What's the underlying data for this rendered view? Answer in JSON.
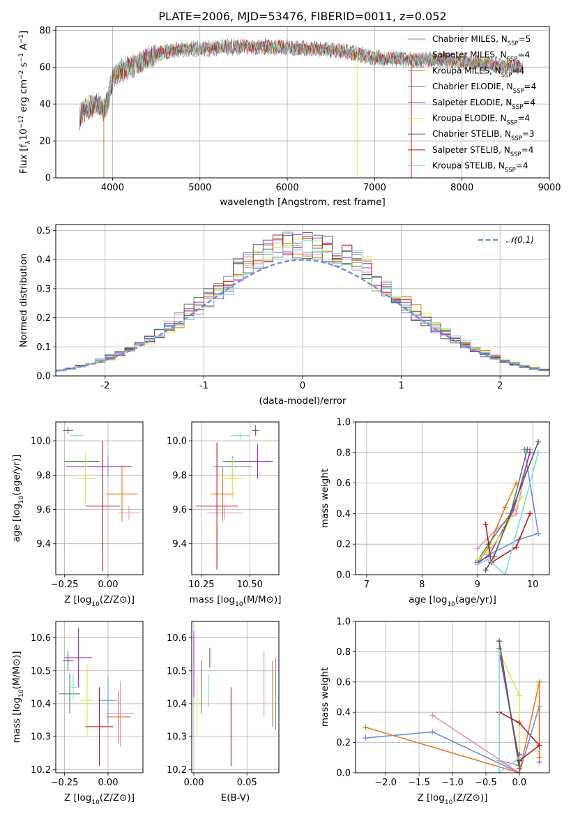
{
  "title": "PLATE=2006, MJD=53476, FIBERID=0011, z=0.052",
  "models": [
    {
      "name": "Chabrier MILES, N_SSP=5",
      "label": "Chabrier MILES, N",
      "sub": "SSP",
      "suffix": "=5",
      "color": "#6a8fdc"
    },
    {
      "name": "Salpeter MILES, N_SSP=4",
      "label": "Salpeter MILES, N",
      "sub": "SSP",
      "suffix": "=4",
      "color": "#e68cc0"
    },
    {
      "name": "Kroupa MILES, N_SSP=4",
      "label": "Kroupa MILES, N",
      "sub": "SSP",
      "suffix": "=4",
      "color": "#e07b20"
    },
    {
      "name": "Chabrier ELODIE, N_SSP=4",
      "label": "Chabrier ELODIE, N",
      "sub": "SSP",
      "suffix": "=4",
      "color": "#4e8a4e"
    },
    {
      "name": "Salpeter ELODIE, N_SSP=4",
      "label": "Salpeter ELODIE, N",
      "sub": "SSP",
      "suffix": "=4",
      "color": "#a532c8"
    },
    {
      "name": "Kroupa ELODIE, N_SSP=4",
      "label": "Kroupa ELODIE, N",
      "sub": "SSP",
      "suffix": "=4",
      "color": "#d4ec4c"
    },
    {
      "name": "Chabrier STELIB, N_SSP=3",
      "label": "Chabrier STELIB, N",
      "sub": "SSP",
      "suffix": "=3",
      "color": "#595959"
    },
    {
      "name": "Salpeter STELIB, N_SSP=4",
      "label": "Salpeter STELIB, N",
      "sub": "SSP",
      "suffix": "=4",
      "color": "#b51c1c"
    },
    {
      "name": "Kroupa STELIB, N_SSP=4",
      "label": "Kroupa STELIB, N",
      "sub": "SSP",
      "suffix": "=4",
      "color": "#7adbe0"
    }
  ],
  "chart_data": [
    {
      "type": "line",
      "panel": "spectrum",
      "title": "PLATE=2006, MJD=53476, FIBERID=0011, z=0.052",
      "xlabel": "wavelength [Angstrom, rest frame]",
      "ylabel": "Flux [f_λ 10^-17 erg cm^-2 s^-1 A^-1]",
      "xlim": [
        3350,
        9000
      ],
      "ylim": [
        0,
        82
      ],
      "xticks": [
        4000,
        5000,
        6000,
        7000,
        8000,
        9000
      ],
      "yticks": [
        0,
        20,
        40,
        60,
        80
      ],
      "legend": "top-right",
      "continuum": {
        "x": [
          3620,
          3700,
          3850,
          3900,
          3950,
          4000,
          4100,
          4300,
          4500,
          4800,
          5100,
          5400,
          5800,
          6200,
          6600,
          7000,
          7400,
          7800,
          8200,
          8700
        ],
        "y": [
          33,
          38,
          40,
          36,
          42,
          54,
          58,
          62,
          67,
          70,
          70,
          71,
          71,
          70,
          69,
          65,
          64,
          64,
          62,
          60
        ]
      },
      "artifacts": [
        {
          "series": "Kroupa MILES, N_SSP=4",
          "x": 3900,
          "y": 0
        },
        {
          "series": "Kroupa ELODIE, N_SSP=4",
          "x": 6800,
          "y": 0
        },
        {
          "series": "Salpeter STELIB, N_SSP=4",
          "x": 7420,
          "y": 0
        }
      ]
    },
    {
      "type": "histogram",
      "panel": "residuals",
      "xlabel": "(data-model)/error",
      "ylabel": "Normed distribution",
      "xlim": [
        -2.5,
        2.5
      ],
      "ylim": [
        0,
        0.52
      ],
      "xticks": [
        -2,
        -1,
        0,
        1,
        2
      ],
      "yticks": [
        0.0,
        0.1,
        0.2,
        0.3,
        0.4,
        0.5
      ],
      "reference": {
        "name": "𝒩(0,1)",
        "mean": 0,
        "sigma": 1,
        "style": "dashed"
      },
      "legend": "top-right",
      "bin_width": 0.1
    },
    {
      "type": "scatter",
      "panel": "age-vs-Z",
      "xlabel": "Z [log10(Z/Z⊙)]",
      "ylabel": "age [log10(age/yr)]",
      "xlim": [
        -0.3,
        0.2
      ],
      "ylim": [
        9.22,
        10.11
      ],
      "xticks": [
        -0.25,
        0.0
      ],
      "yticks": [
        9.4,
        9.6,
        9.8,
        10.0
      ],
      "points": [
        {
          "series": "Chabrier MILES, N_SSP=5",
          "x": 0.0,
          "y": 9.85,
          "xerr": 0.09,
          "yerr": 0.06
        },
        {
          "series": "Salpeter MILES, N_SSP=4",
          "x": 0.12,
          "y": 9.58,
          "xerr": 0.06,
          "yerr": 0.04
        },
        {
          "series": "Kroupa MILES, N_SSP=4",
          "x": 0.08,
          "y": 9.69,
          "xerr": 0.09,
          "yerr": 0.16
        },
        {
          "series": "Chabrier ELODIE, N_SSP=4",
          "x": -0.15,
          "y": 9.88,
          "xerr": 0.1,
          "yerr": 0.0
        },
        {
          "series": "Salpeter ELODIE, N_SSP=4",
          "x": -0.05,
          "y": 9.85,
          "xerr": 0.19,
          "yerr": 0.0
        },
        {
          "series": "Kroupa ELODIE, N_SSP=4",
          "x": -0.13,
          "y": 9.78,
          "xerr": 0.06,
          "yerr": 0.15
        },
        {
          "series": "Chabrier STELIB, N_SSP=3",
          "x": -0.23,
          "y": 10.06,
          "xerr": 0.03,
          "yerr": 0.02
        },
        {
          "series": "Salpeter STELIB, N_SSP=4",
          "x": -0.03,
          "y": 9.62,
          "xerr": 0.1,
          "yerr": 0.38
        },
        {
          "series": "Kroupa STELIB, N_SSP=4",
          "x": -0.18,
          "y": 10.03,
          "xerr": 0.04,
          "yerr": 0.01
        }
      ]
    },
    {
      "type": "scatter",
      "panel": "age-vs-mass",
      "xlabel": "mass [log10(M/M⊙)]",
      "ylabel": "",
      "xlim": [
        10.2,
        10.65
      ],
      "ylim": [
        9.22,
        10.11
      ],
      "xticks": [
        10.25,
        10.5
      ],
      "yticks": [
        9.4,
        9.6,
        9.8,
        10.0
      ],
      "points": [
        {
          "series": "Chabrier MILES, N_SSP=5",
          "x": 10.41,
          "y": 9.85,
          "xerr": 0.1,
          "yerr": 0.06
        },
        {
          "series": "Salpeter MILES, N_SSP=4",
          "x": 10.37,
          "y": 9.58,
          "xerr": 0.09,
          "yerr": 0.04
        },
        {
          "series": "Kroupa MILES, N_SSP=4",
          "x": 10.36,
          "y": 9.69,
          "xerr": 0.06,
          "yerr": 0.16
        },
        {
          "series": "Chabrier ELODIE, N_SSP=4",
          "x": 10.43,
          "y": 9.88,
          "xerr": 0.07,
          "yerr": 0.0
        },
        {
          "series": "Salpeter ELODIE, N_SSP=4",
          "x": 10.54,
          "y": 9.88,
          "xerr": 0.08,
          "yerr": 0.1
        },
        {
          "series": "Kroupa ELODIE, N_SSP=4",
          "x": 10.41,
          "y": 9.78,
          "xerr": 0.06,
          "yerr": 0.12
        },
        {
          "series": "Chabrier STELIB, N_SSP=3",
          "x": 10.53,
          "y": 10.06,
          "xerr": 0.02,
          "yerr": 0.03
        },
        {
          "series": "Salpeter STELIB, N_SSP=4",
          "x": 10.33,
          "y": 9.62,
          "xerr": 0.11,
          "yerr": 0.37
        },
        {
          "series": "Kroupa STELIB, N_SSP=4",
          "x": 10.45,
          "y": 10.03,
          "xerr": 0.05,
          "yerr": 0.02
        }
      ]
    },
    {
      "type": "line",
      "panel": "massweight-vs-age",
      "xlabel": "age [log10(age/yr)]",
      "ylabel": "mass weight",
      "xlim": [
        6.8,
        10.3
      ],
      "ylim": [
        0,
        1.0
      ],
      "xticks": [
        7,
        8,
        9,
        10
      ],
      "yticks": [
        0.0,
        0.2,
        0.4,
        0.6,
        0.8,
        1.0
      ],
      "series": [
        {
          "name": "Chabrier MILES, N_SSP=5",
          "x": [
            9.0,
            9.2,
            9.75,
            10.1,
            9.85
          ],
          "y": [
            0.07,
            0.13,
            0.23,
            0.27,
            0.82
          ]
        },
        {
          "name": "Salpeter MILES, N_SSP=4",
          "x": [
            9.0,
            9.35,
            9.7,
            9.95
          ],
          "y": [
            0.17,
            0.3,
            0.4,
            0.82
          ]
        },
        {
          "name": "Kroupa MILES, N_SSP=4",
          "x": [
            9.0,
            9.2,
            9.5,
            9.7
          ],
          "y": [
            0.07,
            0.18,
            0.44,
            0.6
          ]
        },
        {
          "name": "Chabrier ELODIE, N_SSP=4",
          "x": [
            9.0,
            9.2,
            9.6,
            9.9
          ],
          "y": [
            0.09,
            0.2,
            0.4,
            0.82
          ]
        },
        {
          "name": "Salpeter ELODIE, N_SSP=4",
          "x": [
            9.0,
            9.2,
            9.65,
            9.95
          ],
          "y": [
            0.08,
            0.12,
            0.42,
            0.8
          ]
        },
        {
          "name": "Kroupa ELODIE, N_SSP=4",
          "x": [
            9.0,
            9.2,
            9.5,
            9.8
          ],
          "y": [
            0.1,
            0.15,
            0.3,
            0.51
          ]
        },
        {
          "name": "Chabrier STELIB, N_SSP=3",
          "x": [
            9.15,
            9.3,
            10.1
          ],
          "y": [
            0.03,
            0.12,
            0.87
          ]
        },
        {
          "name": "Salpeter STELIB, N_SSP=4",
          "x": [
            9.15,
            9.25,
            9.7,
            9.95
          ],
          "y": [
            0.33,
            0.08,
            0.18,
            0.4
          ]
        },
        {
          "name": "Kroupa STELIB, N_SSP=4",
          "x": [
            9.0,
            9.2,
            9.5,
            10.1
          ],
          "y": [
            0.07,
            0.1,
            0.0,
            0.8
          ]
        }
      ]
    },
    {
      "type": "scatter",
      "panel": "mass-vs-Z",
      "xlabel": "Z [log10(Z/Z⊙)]",
      "ylabel": "mass [log10(M/M⊙)]",
      "xlim": [
        -0.3,
        0.2
      ],
      "ylim": [
        10.19,
        10.65
      ],
      "xticks": [
        -0.25,
        0.0
      ],
      "yticks": [
        10.2,
        10.3,
        10.4,
        10.5,
        10.6
      ],
      "points": [
        {
          "series": "Chabrier MILES, N_SSP=5",
          "x": 0.0,
          "y": 10.41,
          "xerr": 0.05,
          "yerr": 0.07
        },
        {
          "series": "Salpeter MILES, N_SSP=4",
          "x": 0.07,
          "y": 10.37,
          "xerr": 0.08,
          "yerr": 0.1
        },
        {
          "series": "Kroupa MILES, N_SSP=4",
          "x": 0.06,
          "y": 10.36,
          "xerr": 0.07,
          "yerr": 0.08
        },
        {
          "series": "Chabrier ELODIE, N_SSP=4",
          "x": -0.22,
          "y": 10.43,
          "xerr": 0.06,
          "yerr": 0.06
        },
        {
          "series": "Salpeter ELODIE, N_SSP=4",
          "x": -0.17,
          "y": 10.54,
          "xerr": 0.08,
          "yerr": 0.09
        },
        {
          "series": "Kroupa ELODIE, N_SSP=4",
          "x": -0.12,
          "y": 10.41,
          "xerr": 0.04,
          "yerr": 0.11
        },
        {
          "series": "Chabrier STELIB, N_SSP=3",
          "x": -0.23,
          "y": 10.53,
          "xerr": 0.03,
          "yerr": 0.03
        },
        {
          "series": "Salpeter STELIB, N_SSP=4",
          "x": -0.05,
          "y": 10.33,
          "xerr": 0.08,
          "yerr": 0.12
        },
        {
          "series": "Kroupa STELIB, N_SSP=4",
          "x": -0.2,
          "y": 10.45,
          "xerr": 0.02,
          "yerr": 0.04
        }
      ]
    },
    {
      "type": "scatter",
      "panel": "mass-vs-ebv",
      "xlabel": "E(B-V)",
      "ylabel": "",
      "xlim": [
        -0.002,
        0.08
      ],
      "ylim": [
        10.19,
        10.65
      ],
      "xticks": [
        0.0,
        0.05
      ],
      "yticks": [
        10.2,
        10.3,
        10.4,
        10.5,
        10.6
      ],
      "points": [
        {
          "series": "Chabrier MILES, N_SSP=5",
          "x": 0.077,
          "y": 10.43,
          "xerr": 0,
          "yerr": 0.11
        },
        {
          "series": "Salpeter MILES, N_SSP=4",
          "x": 0.066,
          "y": 10.46,
          "xerr": 0,
          "yerr": 0.1
        },
        {
          "series": "Kroupa MILES, N_SSP=4",
          "x": 0.074,
          "y": 10.43,
          "xerr": 0,
          "yerr": 0.1
        },
        {
          "series": "Chabrier ELODIE, N_SSP=4",
          "x": 0.007,
          "y": 10.45,
          "xerr": 0,
          "yerr": 0.08
        },
        {
          "series": "Salpeter ELODIE, N_SSP=4",
          "x": 0.0,
          "y": 10.52,
          "xerr": 0,
          "yerr": 0.1
        },
        {
          "series": "Kroupa ELODIE, N_SSP=4",
          "x": 0.003,
          "y": 10.39,
          "xerr": 0,
          "yerr": 0.09
        },
        {
          "series": "Chabrier STELIB, N_SSP=3",
          "x": 0.015,
          "y": 10.54,
          "xerr": 0,
          "yerr": 0.03
        },
        {
          "series": "Salpeter STELIB, N_SSP=4",
          "x": 0.035,
          "y": 10.33,
          "xerr": 0,
          "yerr": 0.12
        },
        {
          "series": "Kroupa STELIB, N_SSP=4",
          "x": 0.014,
          "y": 10.44,
          "xerr": 0,
          "yerr": 0.05
        }
      ]
    },
    {
      "type": "line",
      "panel": "massweight-vs-Z",
      "xlabel": "Z [log10(Z/Z⊙)]",
      "ylabel": "mass weight",
      "xlim": [
        -2.45,
        0.45
      ],
      "ylim": [
        0,
        1.0
      ],
      "xticks": [
        -2.0,
        -1.5,
        -1.0,
        -0.5,
        0.0
      ],
      "yticks": [
        0.0,
        0.2,
        0.4,
        0.6,
        0.8,
        1.0
      ],
      "series": [
        {
          "name": "Chabrier MILES, N_SSP=5",
          "x": [
            -2.3,
            -1.3,
            0.0,
            0.3,
            0.3
          ],
          "y": [
            0.23,
            0.27,
            0.0,
            0.44,
            0.07
          ]
        },
        {
          "name": "Salpeter MILES, N_SSP=4",
          "x": [
            -1.3,
            0.0,
            -0.3,
            0.0
          ],
          "y": [
            0.38,
            0.0,
            0.08,
            0.05
          ]
        },
        {
          "name": "Kroupa MILES, N_SSP=4",
          "x": [
            -2.3,
            0.0,
            0.3,
            0.3
          ],
          "y": [
            0.3,
            0.0,
            0.6,
            0.1
          ]
        },
        {
          "name": "Chabrier ELODIE, N_SSP=4",
          "x": [
            -0.3,
            0.0,
            0.0
          ],
          "y": [
            0.82,
            0.05,
            0.1
          ]
        },
        {
          "name": "Salpeter ELODIE, N_SSP=4",
          "x": [
            -0.3,
            0.0,
            0.0
          ],
          "y": [
            0.8,
            0.08,
            0.12
          ]
        },
        {
          "name": "Kroupa ELODIE, N_SSP=4",
          "x": [
            -0.3,
            0.0,
            0.0
          ],
          "y": [
            0.8,
            0.51,
            0.07
          ]
        },
        {
          "name": "Chabrier STELIB, N_SSP=3",
          "x": [
            -0.3,
            0.0,
            0.0
          ],
          "y": [
            0.87,
            0.03,
            0.12
          ]
        },
        {
          "name": "Salpeter STELIB, N_SSP=4",
          "x": [
            -0.3,
            0.0,
            0.3,
            0.0
          ],
          "y": [
            0.4,
            0.33,
            0.18,
            0.08
          ]
        },
        {
          "name": "Kroupa STELIB, N_SSP=4",
          "x": [
            -0.3,
            -0.3,
            0.0
          ],
          "y": [
            0.8,
            0.0,
            0.1
          ]
        }
      ]
    }
  ]
}
